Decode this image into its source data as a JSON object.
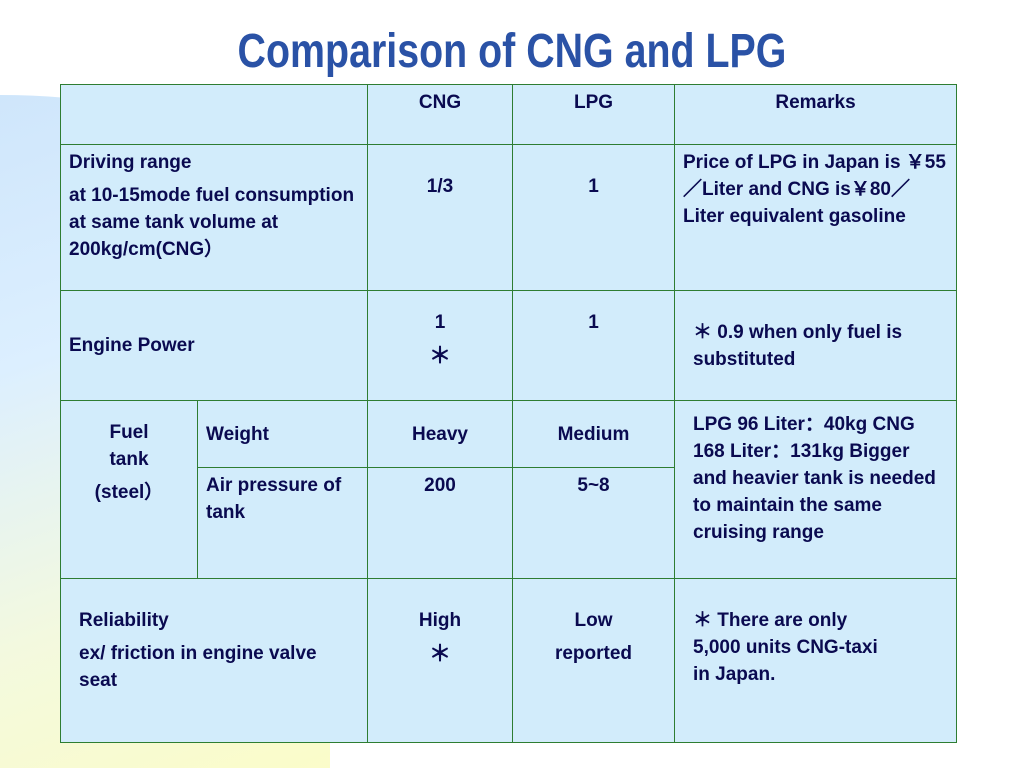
{
  "slide": {
    "title": "Comparison of CNG and LPG"
  },
  "table": {
    "headers": {
      "blank": "",
      "cng": "CNG",
      "lpg": "LPG",
      "remarks": "Remarks"
    },
    "driving": {
      "label": "Driving range",
      "detail": "at 10-15mode fuel consumption at same tank volume at 200kg/cm(CNG）",
      "cng": "1/3",
      "lpg": "1",
      "remarks": "Price of LPG in Japan is ￥55／Liter and CNG is￥80／Liter equivalent gasoline"
    },
    "engine": {
      "label": "Engine Power",
      "cng": "1",
      "cng_mark": "＊",
      "lpg": "1",
      "remarks": "＊ 0.9 when only fuel is substituted"
    },
    "fuel_tank": {
      "label_line1": "Fuel",
      "label_line2": "tank",
      "label_line3": "(steel）",
      "weight": {
        "label": "Weight",
        "cng": "Heavy",
        "lpg": "Medium"
      },
      "pressure": {
        "label": "Air pressure of tank",
        "cng": "200",
        "lpg": "5~8"
      },
      "remarks": "LPG 96 Liter：40kg CNG 168 Liter：131kg Bigger and heavier tank is needed to maintain the same cruising range"
    },
    "reliability": {
      "label": "Reliability",
      "detail": "ex/ friction in engine valve seat",
      "cng": "High",
      "cng_mark": "＊",
      "lpg_line1": "Low",
      "lpg_line2": "reported",
      "remarks": "＊ There are only 5,000 units CNG-taxi in Japan."
    }
  }
}
